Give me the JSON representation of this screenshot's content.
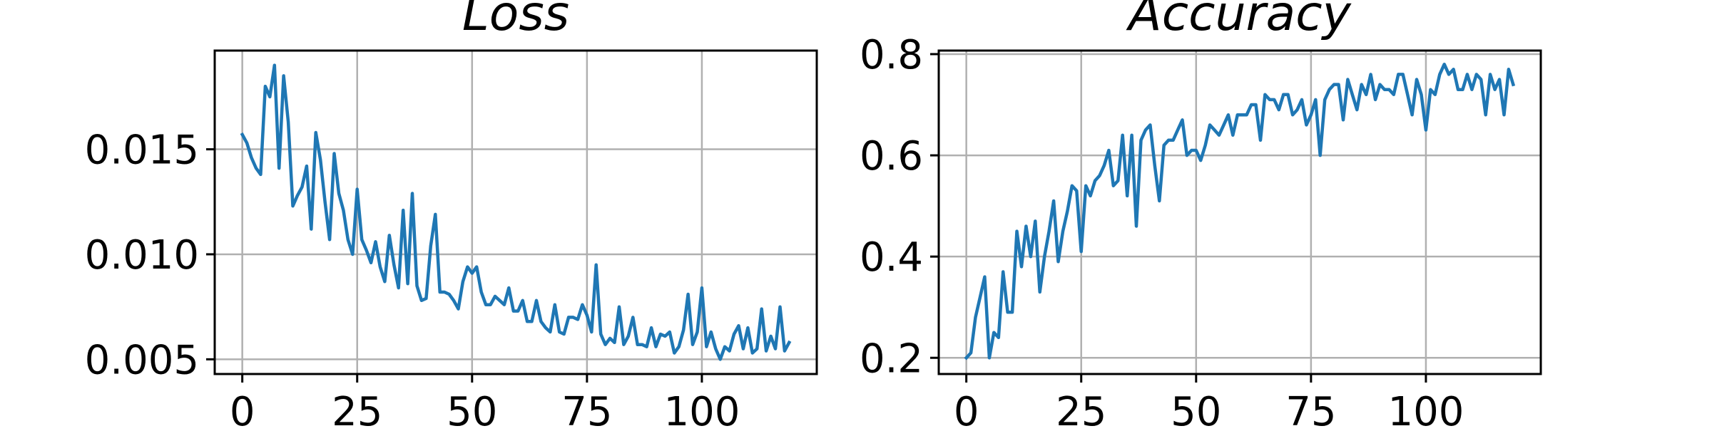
{
  "chart_data": [
    {
      "type": "line",
      "title": "Loss",
      "xlabel": "",
      "ylabel": "",
      "xlim": [
        -6,
        125
      ],
      "ylim": [
        0.0043,
        0.0197
      ],
      "xticks": [
        0,
        25,
        50,
        75,
        100
      ],
      "xtick_labels": [
        "0",
        "25",
        "50",
        "75",
        "100"
      ],
      "yticks": [
        0.005,
        0.01,
        0.015
      ],
      "ytick_labels": [
        "0.005",
        "0.010",
        "0.015"
      ],
      "grid": true,
      "color": "#1f77b4",
      "series": [
        {
          "x": [
            0,
            1,
            2,
            3,
            4,
            5,
            6,
            7,
            8,
            9,
            10,
            11,
            12,
            13,
            14,
            15,
            16,
            17,
            18,
            19,
            20,
            21,
            22,
            23,
            24,
            25,
            26,
            27,
            28,
            29,
            30,
            31,
            32,
            33,
            34,
            35,
            36,
            37,
            38,
            39,
            40,
            41,
            42,
            43,
            44,
            45,
            46,
            47,
            48,
            49,
            50,
            51,
            52,
            53,
            54,
            55,
            56,
            57,
            58,
            59,
            60,
            61,
            62,
            63,
            64,
            65,
            66,
            67,
            68,
            69,
            70,
            71,
            72,
            73,
            74,
            75,
            76,
            77,
            78,
            79,
            80,
            81,
            82,
            83,
            84,
            85,
            86,
            87,
            88,
            89,
            90,
            91,
            92,
            93,
            94,
            95,
            96,
            97,
            98,
            99,
            100,
            101,
            102,
            103,
            104,
            105,
            106,
            107,
            108,
            109,
            110,
            111,
            112,
            113,
            114,
            115,
            116,
            117,
            118,
            119
          ],
          "values": [
            0.0157,
            0.0153,
            0.0146,
            0.0141,
            0.0138,
            0.018,
            0.0175,
            0.019,
            0.0141,
            0.0185,
            0.0163,
            0.0123,
            0.0128,
            0.0132,
            0.0142,
            0.0112,
            0.0158,
            0.0145,
            0.0125,
            0.0107,
            0.0148,
            0.0129,
            0.0121,
            0.0107,
            0.01,
            0.0131,
            0.0107,
            0.0102,
            0.0096,
            0.0106,
            0.0094,
            0.0087,
            0.0109,
            0.0095,
            0.0084,
            0.0121,
            0.0086,
            0.0129,
            0.0085,
            0.0078,
            0.0079,
            0.0104,
            0.0119,
            0.0082,
            0.0082,
            0.0081,
            0.0078,
            0.0074,
            0.0087,
            0.0094,
            0.0091,
            0.0094,
            0.0082,
            0.0076,
            0.0076,
            0.008,
            0.0078,
            0.0076,
            0.0084,
            0.0073,
            0.0073,
            0.0078,
            0.0068,
            0.0068,
            0.0078,
            0.0068,
            0.0065,
            0.0063,
            0.0076,
            0.0063,
            0.0062,
            0.007,
            0.007,
            0.0069,
            0.0076,
            0.0071,
            0.0063,
            0.0095,
            0.0062,
            0.0057,
            0.006,
            0.0058,
            0.0075,
            0.0057,
            0.0061,
            0.007,
            0.0057,
            0.0057,
            0.0056,
            0.0065,
            0.0056,
            0.0062,
            0.0061,
            0.0063,
            0.0053,
            0.0056,
            0.0064,
            0.0081,
            0.0057,
            0.0063,
            0.0084,
            0.0056,
            0.0063,
            0.0055,
            0.005,
            0.0056,
            0.0054,
            0.0062,
            0.0066,
            0.0055,
            0.0065,
            0.0053,
            0.0055,
            0.0074,
            0.0054,
            0.0061,
            0.0055,
            0.0075,
            0.0054,
            0.0058
          ]
        }
      ]
    },
    {
      "type": "line",
      "title": "Accuracy",
      "xlabel": "",
      "ylabel": "",
      "xlim": [
        -6,
        125
      ],
      "ylim": [
        0.168,
        0.807
      ],
      "xticks": [
        0,
        25,
        50,
        75,
        100
      ],
      "xtick_labels": [
        "0",
        "25",
        "50",
        "75",
        "100"
      ],
      "yticks": [
        0.2,
        0.4,
        0.6,
        0.8
      ],
      "ytick_labels": [
        "0.2",
        "0.4",
        "0.6",
        "0.8"
      ],
      "grid": true,
      "color": "#1f77b4",
      "series": [
        {
          "x": [
            0,
            1,
            2,
            3,
            4,
            5,
            6,
            7,
            8,
            9,
            10,
            11,
            12,
            13,
            14,
            15,
            16,
            17,
            18,
            19,
            20,
            21,
            22,
            23,
            24,
            25,
            26,
            27,
            28,
            29,
            30,
            31,
            32,
            33,
            34,
            35,
            36,
            37,
            38,
            39,
            40,
            41,
            42,
            43,
            44,
            45,
            46,
            47,
            48,
            49,
            50,
            51,
            52,
            53,
            54,
            55,
            56,
            57,
            58,
            59,
            60,
            61,
            62,
            63,
            64,
            65,
            66,
            67,
            68,
            69,
            70,
            71,
            72,
            73,
            74,
            75,
            76,
            77,
            78,
            79,
            80,
            81,
            82,
            83,
            84,
            85,
            86,
            87,
            88,
            89,
            90,
            91,
            92,
            93,
            94,
            95,
            96,
            97,
            98,
            99,
            100,
            101,
            102,
            103,
            104,
            105,
            106,
            107,
            108,
            109,
            110,
            111,
            112,
            113,
            114,
            115,
            116,
            117,
            118,
            119
          ],
          "values": [
            0.2,
            0.21,
            0.28,
            0.32,
            0.36,
            0.2,
            0.25,
            0.24,
            0.37,
            0.29,
            0.29,
            0.45,
            0.38,
            0.46,
            0.4,
            0.47,
            0.33,
            0.4,
            0.45,
            0.51,
            0.39,
            0.45,
            0.49,
            0.54,
            0.53,
            0.41,
            0.54,
            0.52,
            0.55,
            0.56,
            0.58,
            0.61,
            0.54,
            0.55,
            0.64,
            0.52,
            0.64,
            0.46,
            0.63,
            0.65,
            0.66,
            0.58,
            0.51,
            0.62,
            0.63,
            0.63,
            0.65,
            0.67,
            0.6,
            0.61,
            0.61,
            0.59,
            0.62,
            0.66,
            0.65,
            0.64,
            0.66,
            0.68,
            0.64,
            0.68,
            0.68,
            0.68,
            0.7,
            0.7,
            0.63,
            0.72,
            0.71,
            0.71,
            0.69,
            0.72,
            0.72,
            0.68,
            0.69,
            0.71,
            0.66,
            0.68,
            0.71,
            0.6,
            0.71,
            0.73,
            0.74,
            0.74,
            0.67,
            0.75,
            0.72,
            0.69,
            0.74,
            0.72,
            0.76,
            0.71,
            0.74,
            0.73,
            0.73,
            0.72,
            0.76,
            0.76,
            0.72,
            0.68,
            0.75,
            0.72,
            0.65,
            0.73,
            0.72,
            0.76,
            0.78,
            0.76,
            0.77,
            0.73,
            0.73,
            0.76,
            0.73,
            0.76,
            0.75,
            0.68,
            0.76,
            0.73,
            0.75,
            0.68,
            0.77,
            0.74
          ]
        }
      ]
    }
  ]
}
